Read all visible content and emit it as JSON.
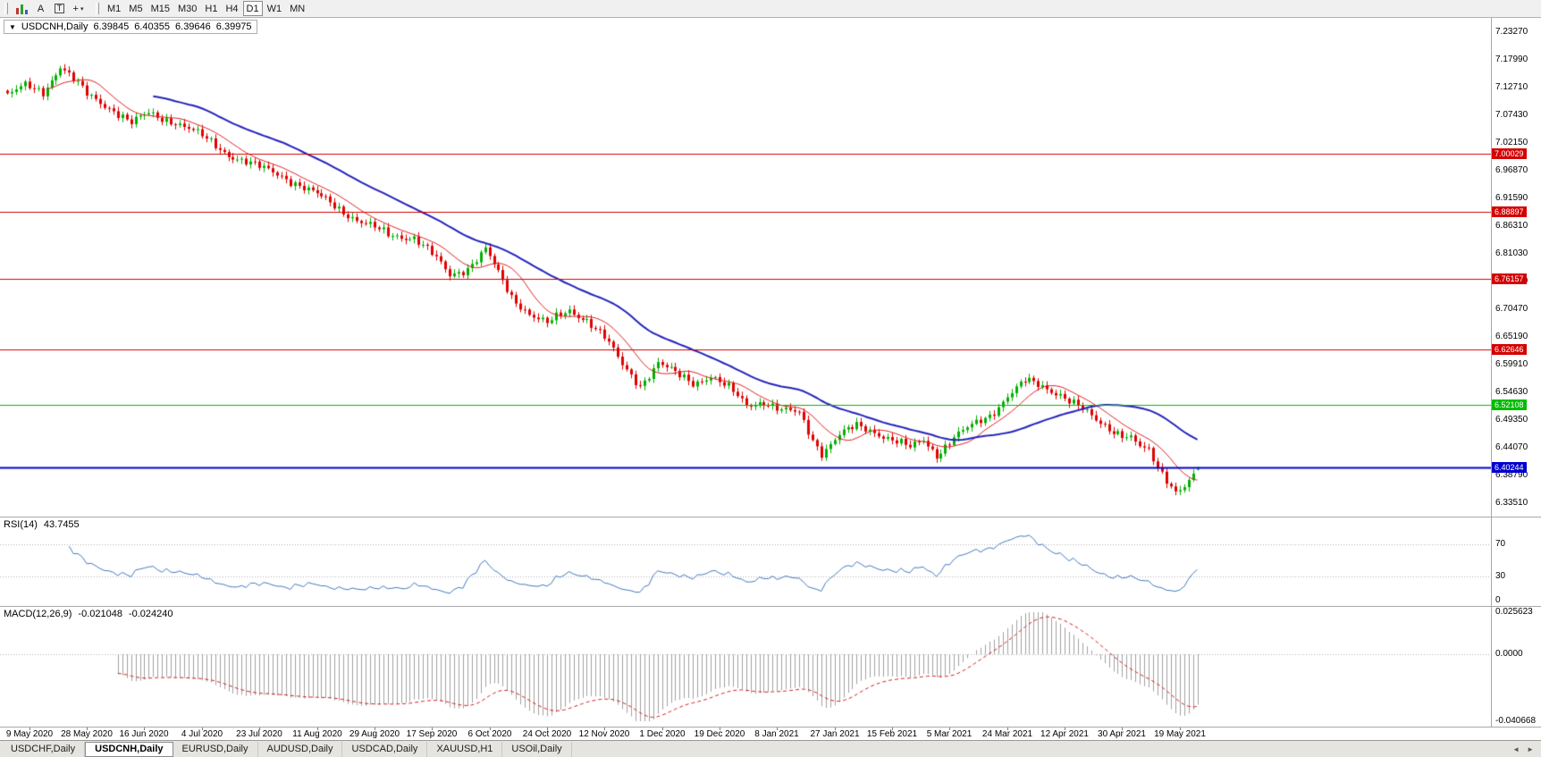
{
  "toolbar": {
    "tools": [
      {
        "name": "candlestick-chart-icon"
      },
      {
        "name": "letter-a-icon",
        "glyph": "A"
      },
      {
        "name": "letter-t-icon",
        "glyph": "T"
      },
      {
        "name": "crosshair-icon",
        "glyph": "+",
        "dropdown": "▾"
      }
    ],
    "timeframes": [
      {
        "label": "M1",
        "active": false
      },
      {
        "label": "M5",
        "active": false
      },
      {
        "label": "M15",
        "active": false
      },
      {
        "label": "M30",
        "active": false
      },
      {
        "label": "H1",
        "active": false
      },
      {
        "label": "H4",
        "active": false
      },
      {
        "label": "D1",
        "active": true
      },
      {
        "label": "W1",
        "active": false
      },
      {
        "label": "MN",
        "active": false
      }
    ]
  },
  "chart_header": {
    "collapse_glyph": "▼",
    "symbol": "USDCNH,Daily",
    "open": "6.39845",
    "high": "6.40355",
    "low": "6.39646",
    "close": "6.39975"
  },
  "rsi_panel": {
    "label": "RSI(14)",
    "value": "43.7455",
    "levels": [
      70,
      30
    ],
    "y_ticks": [
      "70",
      "30",
      "0"
    ]
  },
  "macd_panel": {
    "label": "MACD(12,26,9)",
    "value_main": "-0.021048",
    "value_signal": "-0.024240",
    "y_ticks": [
      "0.025623",
      "0.0000",
      "-0.040668"
    ]
  },
  "tabs": {
    "items": [
      {
        "label": "USDCHF,Daily",
        "active": false
      },
      {
        "label": "USDCNH,Daily",
        "active": true
      },
      {
        "label": "EURUSD,Daily",
        "active": false
      },
      {
        "label": "AUDUSD,Daily",
        "active": false
      },
      {
        "label": "USDCAD,Daily",
        "active": false
      },
      {
        "label": "XAUUSD,H1",
        "active": false
      },
      {
        "label": "USOil,Daily",
        "active": false
      }
    ],
    "scroll_left": "◄",
    "scroll_right": "►"
  },
  "chart_data": {
    "type": "candlestick",
    "symbol": "USDCNH",
    "timeframe": "Daily",
    "bars": 270,
    "first_label_bar": 5,
    "bars_per_label": 13,
    "y_range": [
      6.3087,
      7.2591
    ],
    "y_ticks": [
      "7.23270",
      "7.17990",
      "7.12710",
      "7.07430",
      "7.02150",
      "6.96870",
      "6.91590",
      "6.86310",
      "6.81030",
      "6.75750",
      "6.70470",
      "6.65190",
      "6.59910",
      "6.54630",
      "6.49350",
      "6.44070",
      "6.38790",
      "6.33510"
    ],
    "x_ticks": [
      "9 May 2020",
      "28 May 2020",
      "16 Jun 2020",
      "4 Jul 2020",
      "23 Jul 2020",
      "11 Aug 2020",
      "29 Aug 2020",
      "17 Sep 2020",
      "6 Oct 2020",
      "24 Oct 2020",
      "12 Nov 2020",
      "1 Dec 2020",
      "19 Dec 2020",
      "8 Jan 2021",
      "27 Jan 2021",
      "15 Feb 2021",
      "5 Mar 2021",
      "24 Mar 2021",
      "12 Apr 2021",
      "30 Apr 2021",
      "19 May 2021"
    ],
    "last_bar": {
      "open": 6.39845,
      "high": 6.40355,
      "low": 6.39646,
      "close": 6.39975
    },
    "hlines": [
      {
        "value": 7.00029,
        "label": "7.00029",
        "color": "#d40000",
        "width": 1
      },
      {
        "value": 6.88897,
        "label": "6.88897",
        "color": "#d40000",
        "width": 1
      },
      {
        "value": 6.76157,
        "label": "6.76157",
        "color": "#d40000",
        "width": 1
      },
      {
        "value": 6.62646,
        "label": "6.62646",
        "color": "#d40000",
        "width": 1
      },
      {
        "value": 6.52108,
        "label": "6.52108",
        "color": "#00bb00",
        "width": 1
      },
      {
        "value": 6.40244,
        "label": "6.40244",
        "color": "#0000cc",
        "width": 2
      }
    ],
    "close_anchors": [
      [
        0,
        7.112
      ],
      [
        4,
        7.128
      ],
      [
        8,
        7.118
      ],
      [
        12,
        7.168
      ],
      [
        14,
        7.15
      ],
      [
        18,
        7.112
      ],
      [
        24,
        7.085
      ],
      [
        28,
        7.058
      ],
      [
        32,
        7.076
      ],
      [
        38,
        7.062
      ],
      [
        44,
        7.032
      ],
      [
        50,
        7.0
      ],
      [
        56,
        6.976
      ],
      [
        62,
        6.96
      ],
      [
        68,
        6.93
      ],
      [
        74,
        6.902
      ],
      [
        80,
        6.87
      ],
      [
        86,
        6.845
      ],
      [
        92,
        6.842
      ],
      [
        96,
        6.808
      ],
      [
        100,
        6.768
      ],
      [
        104,
        6.784
      ],
      [
        108,
        6.818
      ],
      [
        111,
        6.77
      ],
      [
        114,
        6.726
      ],
      [
        118,
        6.698
      ],
      [
        122,
        6.676
      ],
      [
        127,
        6.7
      ],
      [
        131,
        6.686
      ],
      [
        135,
        6.65
      ],
      [
        139,
        6.596
      ],
      [
        143,
        6.56
      ],
      [
        147,
        6.602
      ],
      [
        151,
        6.58
      ],
      [
        155,
        6.564
      ],
      [
        159,
        6.578
      ],
      [
        163,
        6.552
      ],
      [
        167,
        6.52
      ],
      [
        171,
        6.53
      ],
      [
        175,
        6.51
      ],
      [
        179,
        6.504
      ],
      [
        182,
        6.456
      ],
      [
        184,
        6.432
      ],
      [
        188,
        6.464
      ],
      [
        192,
        6.48
      ],
      [
        196,
        6.472
      ],
      [
        200,
        6.456
      ],
      [
        204,
        6.438
      ],
      [
        207,
        6.454
      ],
      [
        210,
        6.428
      ],
      [
        214,
        6.46
      ],
      [
        218,
        6.48
      ],
      [
        222,
        6.502
      ],
      [
        226,
        6.54
      ],
      [
        230,
        6.566
      ],
      [
        234,
        6.556
      ],
      [
        238,
        6.544
      ],
      [
        242,
        6.518
      ],
      [
        246,
        6.49
      ],
      [
        250,
        6.474
      ],
      [
        254,
        6.46
      ],
      [
        256,
        6.44
      ],
      [
        258,
        6.43
      ],
      [
        260,
        6.4
      ],
      [
        262,
        6.38
      ],
      [
        264,
        6.36
      ],
      [
        266,
        6.37
      ],
      [
        268,
        6.386
      ],
      [
        269,
        6.39975
      ]
    ],
    "indicators": {
      "ma_fast": 10,
      "ma_slow": 34,
      "rsi": 14,
      "macd": [
        12,
        26,
        9
      ]
    },
    "colors": {
      "candle_up": "#00b000",
      "candle_down": "#e00000",
      "ma_fast": "#e02020",
      "ma_slow": "#2323bb",
      "rsi_line": "#4079bf",
      "rsi_level": "#b4b4b4",
      "macd_histogram": "#a0a0a0",
      "macd_signal": "#d42020"
    }
  }
}
